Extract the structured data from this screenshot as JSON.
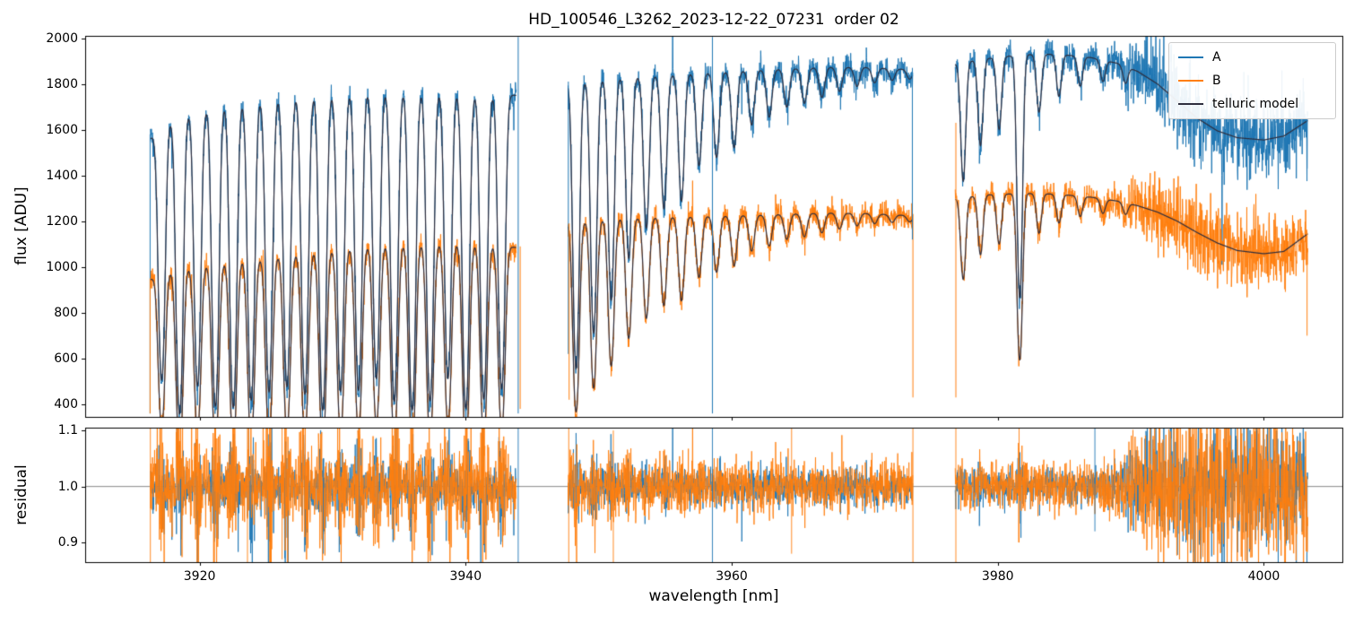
{
  "figure": {
    "title": "HD_100546_L3262_2023-12-22_07231  order 02",
    "xlabel": "wavelength [nm]",
    "ylabel_top": "flux [ADU]",
    "ylabel_bottom": "residual"
  },
  "chart_data": {
    "type": "line",
    "title": "HD_100546_L3262_2023-12-22_07231  order 02",
    "xlabel": "wavelength [nm]",
    "xlim": [
      3911.4,
      4005.9
    ],
    "xticks": [
      3920,
      3940,
      3960,
      3980,
      4000
    ],
    "panels": [
      {
        "name": "flux",
        "ylabel": "flux [ADU]",
        "ylim": [
          345,
          2010
        ],
        "yticks": [
          400,
          600,
          800,
          1000,
          1200,
          1400,
          1600,
          1800,
          2000
        ]
      },
      {
        "name": "residual",
        "ylabel": "residual",
        "ylim": [
          0.865,
          1.105
        ],
        "yticks": [
          0.9,
          1.0,
          1.1
        ],
        "hline": 1.0,
        "hline_color": "#888888"
      }
    ],
    "legend": [
      {
        "label": "A",
        "color": "#1f77b4"
      },
      {
        "label": "B",
        "color": "#ff7f0e"
      },
      {
        "label": "telluric model",
        "color": "#2e2e3e"
      }
    ],
    "background": "#ffffff",
    "segments": [
      [
        3916.3,
        3943.8
      ],
      [
        3947.7,
        3973.6
      ],
      [
        3976.8,
        4003.3
      ]
    ],
    "series": {
      "A": {
        "color": "#1f77b4",
        "noise": 30,
        "continuum": [
          [
            3916.3,
            1560
          ],
          [
            3917.5,
            1630
          ],
          [
            3919,
            1670
          ],
          [
            3921,
            1700
          ],
          [
            3924,
            1725
          ],
          [
            3928,
            1750
          ],
          [
            3932,
            1765
          ],
          [
            3936,
            1770
          ],
          [
            3940,
            1762
          ],
          [
            3943.8,
            1750
          ],
          [
            3947.7,
            1805
          ],
          [
            3951,
            1825
          ],
          [
            3955,
            1838
          ],
          [
            3959,
            1850
          ],
          [
            3963,
            1862
          ],
          [
            3967,
            1872
          ],
          [
            3970,
            1872
          ],
          [
            3973.6,
            1862
          ],
          [
            3976.8,
            1888
          ],
          [
            3979,
            1910
          ],
          [
            3982,
            1928
          ],
          [
            3984.5,
            1930
          ],
          [
            3987,
            1915
          ],
          [
            3989,
            1890
          ],
          [
            3990.5,
            1855
          ],
          [
            3992,
            1800
          ],
          [
            3993.5,
            1725
          ],
          [
            3995,
            1650
          ],
          [
            3996.5,
            1595
          ],
          [
            3998,
            1565
          ],
          [
            4000,
            1555
          ],
          [
            4001.5,
            1572
          ],
          [
            4003.3,
            1640
          ]
        ]
      },
      "B": {
        "color": "#ff7f0e",
        "noise": 27,
        "continuum": [
          [
            3916.3,
            945
          ],
          [
            3917.5,
            975
          ],
          [
            3919,
            995
          ],
          [
            3921,
            1015
          ],
          [
            3924,
            1035
          ],
          [
            3928,
            1065
          ],
          [
            3932,
            1090
          ],
          [
            3936,
            1103
          ],
          [
            3939,
            1107
          ],
          [
            3941.5,
            1100
          ],
          [
            3943.8,
            1085
          ],
          [
            3947.7,
            1192
          ],
          [
            3951,
            1210
          ],
          [
            3955,
            1218
          ],
          [
            3959,
            1222
          ],
          [
            3963,
            1228
          ],
          [
            3967,
            1236
          ],
          [
            3970,
            1234
          ],
          [
            3973.6,
            1224
          ],
          [
            3976.8,
            1298
          ],
          [
            3979,
            1315
          ],
          [
            3982,
            1322
          ],
          [
            3984.5,
            1318
          ],
          [
            3987,
            1305
          ],
          [
            3989,
            1288
          ],
          [
            3990.5,
            1268
          ],
          [
            3992,
            1240
          ],
          [
            3993.5,
            1200
          ],
          [
            3995,
            1150
          ],
          [
            3996.5,
            1105
          ],
          [
            3998,
            1072
          ],
          [
            4000,
            1058
          ],
          [
            4001.5,
            1068
          ],
          [
            4003.3,
            1145
          ]
        ]
      }
    },
    "telluric": {
      "color": "#2e2e3e",
      "comb1": {
        "start": 3917.15,
        "spacing": 1.345,
        "count": 20,
        "tau": 1.35,
        "w": 0.21
      },
      "comb2": {
        "start": 3948.3,
        "spacing": 1.32,
        "count": 20,
        "tau0": 1.1,
        "decay": 5.0,
        "w": 0.2
      },
      "extra_lines": [
        [
          3977.4,
          0.32
        ],
        [
          3978.7,
          0.22
        ],
        [
          3980.1,
          0.18
        ],
        [
          3981.65,
          0.8
        ],
        [
          3983.1,
          0.14
        ],
        [
          3984.6,
          0.1
        ],
        [
          3986.2,
          0.07
        ],
        [
          3987.9,
          0.05
        ],
        [
          3989.6,
          0.04
        ]
      ]
    },
    "noise_ramp": {
      "x0": 3987.5,
      "x1": 3992.5,
      "factor": 3.1,
      "x2": 4001.0,
      "end": 2.2
    },
    "spikes_flux": [
      {
        "x": 3916.28,
        "s": "A",
        "v0": 360,
        "v1": 1580
      },
      {
        "x": 3916.28,
        "s": "B",
        "v0": 360,
        "v1": 950
      },
      {
        "x": 3943.95,
        "s": "A",
        "v0": 360,
        "v1": 2005
      },
      {
        "x": 3944.1,
        "s": "B",
        "v0": 380,
        "v1": 1090
      },
      {
        "x": 3947.72,
        "s": "A",
        "v0": 620,
        "v1": 1810
      },
      {
        "x": 3947.78,
        "s": "B",
        "v0": 420,
        "v1": 1190
      },
      {
        "x": 3958.55,
        "s": "A",
        "v0": 360,
        "v1": 2005
      },
      {
        "x": 3973.62,
        "s": "B",
        "v0": 430,
        "v1": 1230
      },
      {
        "x": 3973.58,
        "s": "A",
        "v0": 1120,
        "v1": 1870
      },
      {
        "x": 3976.85,
        "s": "B",
        "v0": 430,
        "v1": 1630
      },
      {
        "x": 4003.25,
        "s": "B",
        "v0": 700,
        "v1": 1150
      },
      {
        "x": 4003.25,
        "s": "A",
        "v0": 1430,
        "v1": 1650
      }
    ],
    "spikes_residual": [
      {
        "x": 3916.3,
        "s": "B",
        "v0": 0.6,
        "v1": 1.4
      },
      {
        "x": 3923.6,
        "s": "B",
        "v0": 0.6,
        "v1": 1.12
      },
      {
        "x": 3926.2,
        "s": "B",
        "v0": 0.87,
        "v1": 1.13
      },
      {
        "x": 3929.3,
        "s": "A",
        "v0": 0.88,
        "v1": 1.05
      },
      {
        "x": 3943.95,
        "s": "A",
        "v0": 0.6,
        "v1": 1.4
      },
      {
        "x": 3947.75,
        "s": "B",
        "v0": 0.6,
        "v1": 1.4
      },
      {
        "x": 3951.1,
        "s": "B",
        "v0": 0.86,
        "v1": 1.1
      },
      {
        "x": 3958.55,
        "s": "A",
        "v0": 0.6,
        "v1": 1.4
      },
      {
        "x": 3964.5,
        "s": "B",
        "v0": 0.88,
        "v1": 1.12
      },
      {
        "x": 3973.62,
        "s": "B",
        "v0": 0.6,
        "v1": 1.25
      },
      {
        "x": 3976.85,
        "s": "B",
        "v0": 0.6,
        "v1": 1.4
      },
      {
        "x": 3981.6,
        "s": "B",
        "v0": 0.9,
        "v1": 1.3
      },
      {
        "x": 3987.3,
        "s": "A",
        "v0": 0.92,
        "v1": 1.3
      }
    ]
  }
}
